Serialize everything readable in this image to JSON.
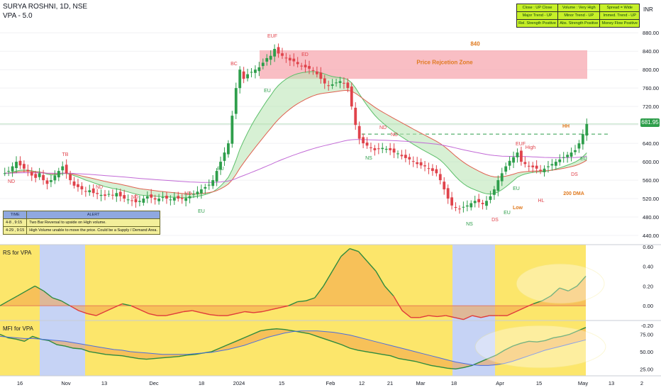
{
  "header": {
    "symbol_line": "SURYA ROSHNI, 1D, NSE",
    "indicator_line": "VPA - 5.0"
  },
  "currency": "INR",
  "last_price": "681.95",
  "colors": {
    "bull": "#2e9e4b",
    "bear": "#e0434b",
    "zone": "#f7a8b0",
    "panel_yellow": "#fce66b",
    "panel_blue": "#c6d3f5",
    "table_green": "#c6f028"
  },
  "panel_table": [
    [
      "Close : UP Close",
      "Volume : Very High",
      "Spread = Wide"
    ],
    [
      "Major Trend - UP",
      "Minor Trend - UP",
      "Immed. Trend - UP"
    ],
    [
      "Rel. Strength Positive",
      "Abs. Strength Positive",
      "Money Flow Positive"
    ]
  ],
  "alert_table": {
    "headers": [
      "TIME",
      "ALERT"
    ],
    "rows": [
      [
        "4-8 , 9:15",
        "Two Bar Reversal to upside on High volume."
      ],
      [
        "4-29 , 9:15",
        "High Volume unable to move the price. Could be a Supply / Demand Area."
      ]
    ]
  },
  "chart_data": [
    {
      "type": "candlestick",
      "title": "",
      "ylim": [
        420,
        905
      ],
      "yticks": [
        "880.00",
        "840.00",
        "800.00",
        "760.00",
        "720.00",
        "680.00",
        "640.00",
        "600.00",
        "560.00",
        "520.00",
        "480.00",
        "440.00"
      ],
      "xticks": [
        "16",
        "Nov",
        "13",
        "Dec",
        "18",
        "2024",
        "15",
        "Feb",
        "12",
        "21",
        "Mar",
        "18",
        "Apr",
        "15",
        "May",
        "13",
        "2"
      ],
      "close_series": [
        575,
        580,
        590,
        600,
        592,
        585,
        580,
        570,
        565,
        575,
        560,
        552,
        560,
        570,
        580,
        590,
        575,
        560,
        548,
        545,
        540,
        535,
        538,
        532,
        530,
        528,
        526,
        530,
        528,
        532,
        525,
        520,
        518,
        515,
        512,
        515,
        520,
        525,
        522,
        518,
        520,
        523,
        520,
        518,
        522,
        520,
        519,
        521,
        525,
        530,
        535,
        540,
        545,
        550,
        560,
        580,
        600,
        620,
        640,
        700,
        760,
        800,
        780,
        790,
        795,
        800,
        805,
        815,
        825,
        830,
        845,
        835,
        830,
        825,
        820,
        818,
        812,
        808,
        805,
        802,
        798,
        790,
        780,
        770,
        765,
        768,
        772,
        775,
        770,
        760,
        720,
        680,
        650,
        640,
        635,
        630,
        625,
        628,
        630,
        628,
        625,
        620,
        618,
        612,
        608,
        605,
        600,
        595,
        592,
        590,
        585,
        580,
        575,
        560,
        540,
        520,
        505,
        500,
        498,
        502,
        505,
        510,
        515,
        512,
        508,
        515,
        525,
        540,
        560,
        575,
        590,
        602,
        610,
        620,
        600,
        595,
        590,
        588,
        585,
        580,
        585,
        590,
        595,
        600,
        605,
        610,
        615,
        620,
        625,
        640,
        660,
        682
      ],
      "ma_fast": "EMA (green band upper edge)",
      "ma_slow": "EMA (red line)",
      "ma_long": "200 DMA (purple)",
      "annotations": [
        "ND",
        "TB",
        "ND",
        "ND",
        "ND",
        "BC",
        "EUF",
        "ED",
        "EU",
        "EU",
        "EU",
        "NS",
        "ND",
        "ND",
        "NS",
        "DS",
        "EUF",
        "High",
        "EU",
        "Low",
        "HL",
        "DS",
        "EU",
        "HH",
        "EU",
        "200 DMA",
        "Price Rejcetion Zone",
        "840"
      ],
      "price_rejection_zone": [
        780,
        842
      ],
      "resistance_line": 660,
      "last_close": 681.95
    },
    {
      "type": "area",
      "title": "RS for VPA",
      "ylim": [
        -0.15,
        0.62
      ],
      "yticks": [
        "0.60",
        "0.40",
        "0.20",
        "0.00",
        "-0.20"
      ],
      "values": [
        0.0,
        0.05,
        0.1,
        0.15,
        0.2,
        0.15,
        0.08,
        0.05,
        0.0,
        -0.05,
        -0.08,
        -0.1,
        -0.06,
        -0.02,
        0.02,
        0.0,
        -0.04,
        -0.08,
        -0.1,
        -0.1,
        -0.08,
        -0.06,
        -0.05,
        -0.07,
        -0.09,
        -0.1,
        -0.1,
        -0.08,
        -0.06,
        -0.07,
        -0.06,
        -0.04,
        -0.02,
        0.0,
        0.04,
        0.05,
        0.08,
        0.2,
        0.35,
        0.5,
        0.58,
        0.55,
        0.45,
        0.35,
        0.2,
        0.1,
        -0.05,
        -0.12,
        -0.12,
        -0.1,
        -0.11,
        -0.1,
        -0.12,
        -0.14,
        -0.1,
        -0.12,
        -0.1,
        -0.1,
        -0.1,
        -0.06,
        -0.02,
        0.02,
        0.05,
        0.1,
        0.18,
        0.15,
        0.2,
        0.3
      ]
    },
    {
      "type": "area",
      "title": "MFI for VPA",
      "ylim": [
        15,
        95
      ],
      "yticks": [
        "75.00",
        "50.00",
        "25.00"
      ],
      "values": [
        75,
        70,
        68,
        65,
        72,
        68,
        66,
        60,
        58,
        55,
        54,
        50,
        48,
        46,
        45,
        44,
        42,
        40,
        39,
        40,
        41,
        42,
        43,
        45,
        46,
        48,
        50,
        55,
        60,
        65,
        70,
        75,
        80,
        82,
        83,
        82,
        80,
        78,
        76,
        72,
        68,
        64,
        60,
        55,
        52,
        50,
        48,
        46,
        44,
        40,
        38,
        36,
        33,
        30,
        28,
        26,
        25,
        27,
        30,
        35,
        40,
        45,
        52,
        58,
        62,
        65,
        64,
        66,
        70,
        72,
        75,
        80,
        85
      ],
      "signal": [
        72,
        71,
        70,
        69,
        69,
        68,
        67,
        66,
        65,
        63,
        61,
        59,
        57,
        55,
        53,
        52,
        50,
        49,
        48,
        47,
        46,
        46,
        46,
        46,
        47,
        48,
        49,
        51,
        53,
        56,
        59,
        63,
        67,
        71,
        74,
        77,
        79,
        80,
        80,
        80,
        79,
        78,
        76,
        74,
        71,
        68,
        65,
        62,
        59,
        56,
        53,
        50,
        47,
        44,
        41,
        38,
        35,
        33,
        31,
        30,
        30,
        31,
        33,
        36,
        40,
        44,
        48,
        52,
        55,
        58,
        61,
        64,
        67
      ]
    }
  ]
}
